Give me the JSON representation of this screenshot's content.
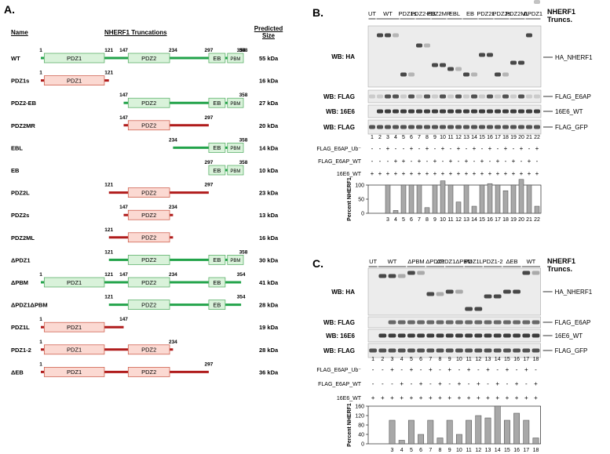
{
  "panel_a": {
    "label": "A.",
    "col_name": "Name",
    "col_title": "NHERF1 Truncations",
    "col_size": "Predicted Size",
    "constructs": [
      {
        "name": "WT",
        "size": "55 kDa",
        "start": 1,
        "end": 358,
        "color": "green",
        "domains": [
          "PDZ1",
          "PDZ2",
          "EB",
          "PBM"
        ],
        "numbers": [
          "1",
          "121",
          "147",
          "234",
          "297",
          "354",
          "358"
        ]
      },
      {
        "name": "PDZ1s",
        "size": "16 kDa",
        "start": 1,
        "end": 121,
        "color": "red",
        "domains": [
          "PDZ1"
        ],
        "numbers": [
          "1",
          "121"
        ]
      },
      {
        "name": "PDZ2-EB",
        "size": "27 kDa",
        "start": 147,
        "end": 358,
        "color": "green",
        "domains": [
          "PDZ2",
          "EB",
          "PBM"
        ],
        "numbers": [
          "147",
          "358"
        ]
      },
      {
        "name": "PDZ2MR",
        "size": "20 kDa",
        "start": 147,
        "end": 297,
        "color": "red",
        "domains": [
          "PDZ2"
        ],
        "numbers": [
          "147",
          "297"
        ]
      },
      {
        "name": "EBL",
        "size": "14 kDa",
        "start": 234,
        "end": 358,
        "color": "green",
        "domains": [
          "EB",
          "PBM"
        ],
        "numbers": [
          "234",
          "358"
        ]
      },
      {
        "name": "EB",
        "size": "10 kDa",
        "start": 297,
        "end": 358,
        "color": "green",
        "domains": [
          "EB",
          "PBM"
        ],
        "numbers": [
          "297",
          "358"
        ]
      },
      {
        "name": "PDZ2L",
        "size": "23 kDa",
        "start": 121,
        "end": 297,
        "color": "red",
        "domains": [
          "PDZ2"
        ],
        "numbers": [
          "121",
          "297"
        ]
      },
      {
        "name": "PDZ2s",
        "size": "13 kDa",
        "start": 147,
        "end": 234,
        "color": "red",
        "domains": [
          "PDZ2"
        ],
        "numbers": [
          "147",
          "234"
        ]
      },
      {
        "name": "PDZ2ML",
        "size": "16 kDa",
        "start": 121,
        "end": 234,
        "color": "red",
        "domains": [
          "PDZ2"
        ],
        "numbers": [
          "121"
        ]
      },
      {
        "name": "ΔPDZ1",
        "size": "30 kDa",
        "start": 121,
        "end": 358,
        "color": "green",
        "domains": [
          "PDZ2",
          "EB",
          "PBM"
        ],
        "numbers": [
          "121",
          "358"
        ]
      },
      {
        "name": "ΔPBM",
        "size": "41 kDa",
        "start": 1,
        "end": 354,
        "color": "green",
        "domains": [
          "PDZ1",
          "PDZ2",
          "EB"
        ],
        "numbers": [
          "1",
          "121",
          "147",
          "234",
          "354"
        ]
      },
      {
        "name": "ΔPDZ1ΔPBM",
        "size": "28 kDa",
        "start": 121,
        "end": 354,
        "color": "green",
        "domains": [
          "PDZ2",
          "EB"
        ],
        "numbers": [
          "121",
          "354"
        ]
      },
      {
        "name": "PDZ1L",
        "size": "19 kDa",
        "start": 1,
        "end": 147,
        "color": "red",
        "domains": [
          "PDZ1"
        ],
        "numbers": [
          "1",
          "147"
        ]
      },
      {
        "name": "PDZ1-2",
        "size": "28 kDa",
        "start": 1,
        "end": 234,
        "color": "red",
        "domains": [
          "PDZ1",
          "PDZ2"
        ],
        "numbers": [
          "1",
          "234"
        ]
      },
      {
        "name": "ΔEB",
        "size": "36 kDa",
        "start": 1,
        "end": 297,
        "color": "red",
        "domains": [
          "PDZ1",
          "PDZ2"
        ],
        "numbers": [
          "1",
          "297"
        ]
      }
    ]
  },
  "panel_b": {
    "label": "B.",
    "title": "NHERF1 Truncs.",
    "lanes": 22,
    "groups": [
      {
        "label": "UT",
        "lanes": [
          1,
          1
        ]
      },
      {
        "label": "WT",
        "lanes": [
          2,
          4
        ]
      },
      {
        "label": "PDZ1s",
        "lanes": [
          5,
          6
        ]
      },
      {
        "label": "PDZ2-EB",
        "lanes": [
          7,
          8
        ]
      },
      {
        "label": "PDZ2MR",
        "lanes": [
          9,
          10
        ]
      },
      {
        "label": "EBL",
        "lanes": [
          11,
          12
        ]
      },
      {
        "label": "EB",
        "lanes": [
          13,
          14
        ]
      },
      {
        "label": "PDZ2L",
        "lanes": [
          15,
          16
        ]
      },
      {
        "label": "PDZ2s",
        "lanes": [
          17,
          18
        ]
      },
      {
        "label": "PDZ2ML",
        "lanes": [
          19,
          20
        ]
      },
      {
        "label": "ΔPDZ1",
        "lanes": [
          21,
          22
        ]
      }
    ],
    "wb_labels": [
      "WB: HA",
      "WB: FLAG",
      "WB: 16E6",
      "WB: FLAG"
    ],
    "right_labels": [
      "HA_NHERF1",
      "FLAG_E6AP",
      "16E6_WT",
      "FLAG_GFP"
    ],
    "treatments": [
      {
        "label": "FLAG_E6AP_Ub⁻",
        "signs": [
          "-",
          "-",
          "+",
          "-",
          "-",
          "+",
          "-",
          "+",
          "-",
          "+",
          "-",
          "+",
          "-",
          "+",
          "-",
          "+",
          "-",
          "+",
          "-",
          "+",
          "-",
          "+"
        ]
      },
      {
        "label": "FLAG_E6AP_WT",
        "signs": [
          "-",
          "-",
          "-",
          "+",
          "+",
          "-",
          "+",
          "-",
          "+",
          "-",
          "+",
          "-",
          "+",
          "-",
          "+",
          "-",
          "+",
          "-",
          "+",
          "-",
          "+",
          "-"
        ]
      },
      {
        "label": "16E6_WT",
        "signs": [
          "+",
          "+",
          "+",
          "+",
          "+",
          "+",
          "+",
          "+",
          "+",
          "+",
          "+",
          "+",
          "+",
          "+",
          "+",
          "+",
          "+",
          "+",
          "+",
          "+",
          "+",
          "+"
        ]
      }
    ]
  },
  "panel_c": {
    "label": "C.",
    "title": "NHERF1 Truncs.",
    "lanes": 18,
    "groups": [
      {
        "label": "UT",
        "lanes": [
          1,
          1
        ]
      },
      {
        "label": "WT",
        "lanes": [
          2,
          4
        ]
      },
      {
        "label": "ΔPBM",
        "lanes": [
          5,
          6
        ]
      },
      {
        "label": "ΔPDZ1",
        "lanes": [
          7,
          8
        ]
      },
      {
        "label": "ΔPDZ1ΔPBM",
        "lanes": [
          9,
          10
        ]
      },
      {
        "label": "PDZ1L",
        "lanes": [
          11,
          12
        ]
      },
      {
        "label": "PDZ1-2",
        "lanes": [
          13,
          14
        ]
      },
      {
        "label": "ΔEB",
        "lanes": [
          15,
          16
        ]
      },
      {
        "label": "WT",
        "lanes": [
          17,
          18
        ]
      }
    ],
    "wb_labels": [
      "WB: HA",
      "WB: FLAG",
      "WB: 16E6",
      "WB: FLAG"
    ],
    "right_labels": [
      "HA_NHERF1",
      "FLAG_E6AP",
      "16E6_WT",
      "FLAG_GFP"
    ],
    "treatments": [
      {
        "label": "FLAG_E6AP_Ub⁻",
        "signs": [
          "-",
          "-",
          "+",
          "-",
          "+",
          "-",
          "+",
          "-",
          "+",
          "-",
          "+",
          "-",
          "+",
          "-",
          "+",
          "-",
          "+",
          "-"
        ]
      },
      {
        "label": "FLAG_E6AP_WT",
        "signs": [
          "-",
          "-",
          "-",
          "+",
          "-",
          "+",
          "-",
          "+",
          "-",
          "+",
          "-",
          "+",
          "-",
          "+",
          "-",
          "+",
          "-",
          "+"
        ]
      },
      {
        "label": "16E6_WT",
        "signs": [
          "+",
          "+",
          "+",
          "+",
          "+",
          "+",
          "+",
          "+",
          "+",
          "+",
          "+",
          "+",
          "+",
          "+",
          "+",
          "+",
          "+",
          "+"
        ]
      }
    ]
  },
  "chart_data": [
    {
      "type": "bar",
      "ylabel": "Percent NHERF1",
      "ylim": [
        0,
        100
      ],
      "yticks": [
        0,
        50,
        100
      ],
      "categories": [
        "3",
        "4",
        "5",
        "6",
        "7",
        "8",
        "9",
        "10",
        "11",
        "12",
        "13",
        "14",
        "15",
        "16",
        "17",
        "18",
        "19",
        "20",
        "21",
        "22"
      ],
      "values": [
        100,
        10,
        100,
        100,
        100,
        20,
        100,
        115,
        100,
        40,
        100,
        25,
        100,
        105,
        100,
        80,
        100,
        120,
        100,
        25
      ]
    },
    {
      "type": "bar",
      "ylabel": "Percent NHERF1",
      "ylim": [
        0,
        160
      ],
      "yticks": [
        0,
        40,
        80,
        120,
        160
      ],
      "categories": [
        "3",
        "4",
        "5",
        "6",
        "7",
        "8",
        "9",
        "10",
        "11",
        "12",
        "13",
        "14",
        "15",
        "16",
        "17",
        "18"
      ],
      "values": [
        100,
        15,
        100,
        40,
        100,
        25,
        100,
        40,
        100,
        120,
        110,
        160,
        100,
        130,
        100,
        25
      ]
    }
  ]
}
